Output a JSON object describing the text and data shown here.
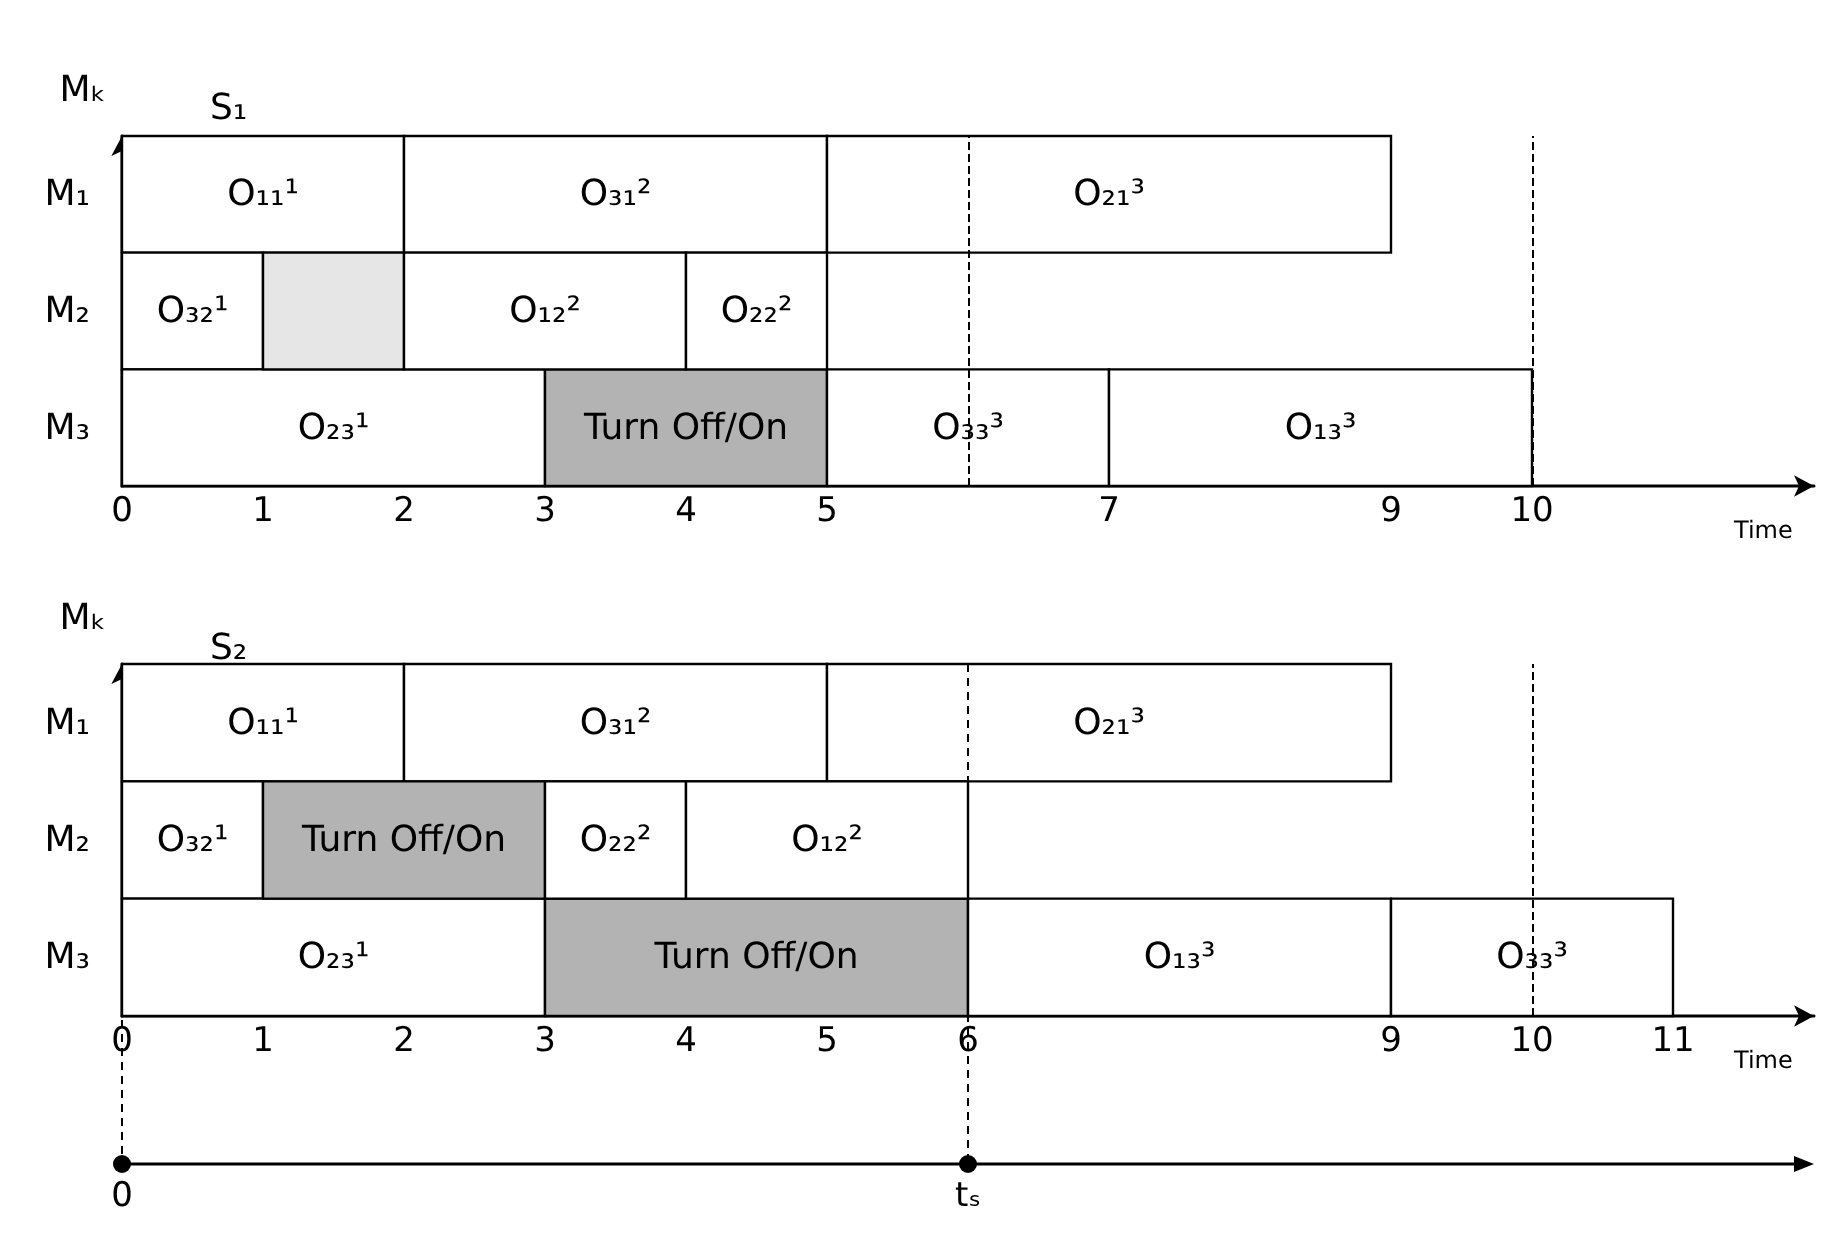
{
  "chart_data": [
    {
      "type": "bar",
      "orientation": "horizontal",
      "title": "S₁",
      "ylabel": "Mₖ",
      "xlabel": "Time",
      "categories": [
        "M₁",
        "M₂",
        "M₃"
      ],
      "xlim": [
        0,
        12
      ],
      "xticks": [
        0,
        1,
        2,
        3,
        4,
        5,
        7,
        9,
        10
      ],
      "series": [
        {
          "base": [
            0,
            0,
            0
          ],
          "values": [
            2,
            1,
            3
          ],
          "value_labels": [
            "O₁₁¹",
            "O₃₂¹",
            "O₂₃¹"
          ],
          "colors": [
            "#ffffff",
            "#ffffff",
            "#ffffff"
          ]
        },
        {
          "base": [
            2,
            1,
            3
          ],
          "values": [
            3,
            1,
            2
          ],
          "value_labels": [
            "O₃₁²",
            null,
            "Turn Off/On"
          ],
          "colors": [
            "#ffffff",
            "#e6e6e6",
            "#b3b3b3"
          ]
        },
        {
          "base": [
            5,
            2,
            5
          ],
          "values": [
            4,
            2,
            2
          ],
          "value_labels": [
            "O₂₁³",
            "O₁₂²",
            "O₃₃³"
          ],
          "colors": [
            "#ffffff",
            "#ffffff",
            "#ffffff"
          ]
        },
        {
          "base": [
            null,
            4,
            7
          ],
          "values": [
            null,
            1,
            3
          ],
          "value_labels": [
            null,
            "O₂₂²",
            "O₁₃³"
          ],
          "colors": [
            null,
            "#ffffff",
            "#ffffff"
          ]
        }
      ],
      "ref_lines": [
        {
          "axis": "x",
          "value": 6,
          "line_style": "dashed"
        },
        {
          "axis": "x",
          "value": 10,
          "line_style": "dashed"
        }
      ]
    },
    {
      "type": "bar",
      "orientation": "horizontal",
      "title": "S₂",
      "ylabel": "Mₖ",
      "xlabel": "Time",
      "categories": [
        "M₁",
        "M₂",
        "M₃"
      ],
      "xlim": [
        0,
        12
      ],
      "xticks": [
        0,
        1,
        2,
        3,
        4,
        5,
        6,
        9,
        10,
        11
      ],
      "series": [
        {
          "base": [
            0,
            0,
            0
          ],
          "values": [
            2,
            1,
            3
          ],
          "value_labels": [
            "O₁₁¹",
            "O₃₂¹",
            "O₂₃¹"
          ],
          "colors": [
            "#ffffff",
            "#ffffff",
            "#ffffff"
          ]
        },
        {
          "base": [
            2,
            1,
            3
          ],
          "values": [
            3,
            2,
            3
          ],
          "value_labels": [
            "O₃₁²",
            "Turn Off/On",
            "Turn Off/On"
          ],
          "colors": [
            "#ffffff",
            "#b3b3b3",
            "#b3b3b3"
          ]
        },
        {
          "base": [
            5,
            3,
            6
          ],
          "values": [
            4,
            1,
            3
          ],
          "value_labels": [
            "O₂₁³",
            "O₂₂²",
            "O₁₃³"
          ],
          "colors": [
            "#ffffff",
            "#ffffff",
            "#ffffff"
          ]
        },
        {
          "base": [
            null,
            4,
            9
          ],
          "values": [
            null,
            2,
            2
          ],
          "value_labels": [
            null,
            "O₁₂²",
            "O₃₃³"
          ],
          "colors": [
            null,
            "#ffffff",
            "#ffffff"
          ]
        }
      ],
      "ref_lines": [
        {
          "axis": "x",
          "value": 0,
          "label": "0",
          "line_style": "dashed"
        },
        {
          "axis": "x",
          "value": 6,
          "label": "tₛ",
          "line_style": "dashed"
        },
        {
          "axis": "x",
          "value": 10,
          "line_style": "dashed"
        }
      ]
    }
  ]
}
